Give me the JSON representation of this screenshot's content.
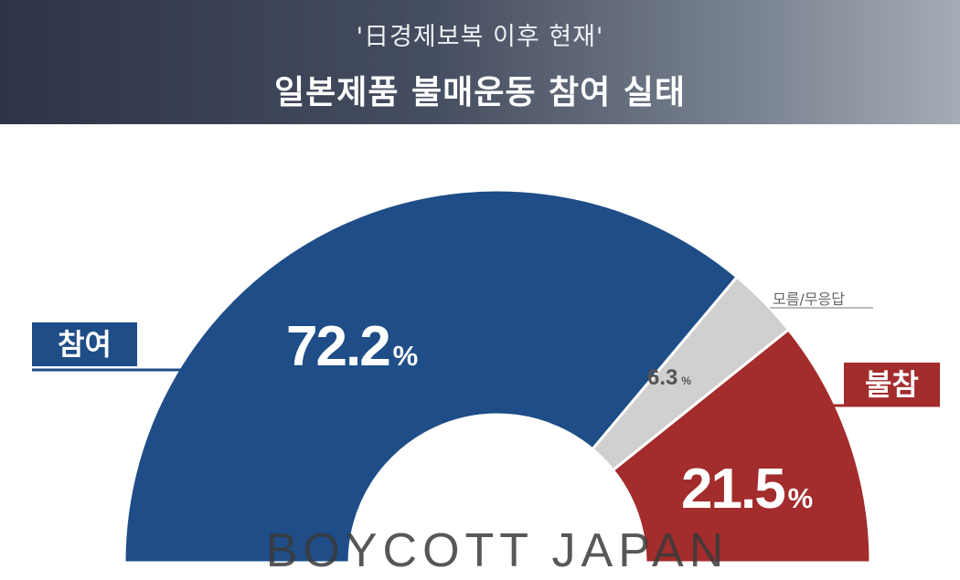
{
  "header": {
    "subtitle": "'日경제보복 이후 현재'",
    "title": "일본제품 불매운동 참여 실태"
  },
  "colors": {
    "participate": "#1e4d87",
    "unknown": "#d0d0d0",
    "not_participate": "#a32c2c"
  },
  "chart_data": {
    "type": "pie",
    "variant": "half-donut",
    "slices": [
      {
        "label": "참여",
        "value": 72.2,
        "display": "72.2",
        "unit": "%"
      },
      {
        "label": "모름/무응답",
        "value": 6.3,
        "display": "6.3",
        "unit": "%"
      },
      {
        "label": "불참",
        "value": 21.5,
        "display": "21.5",
        "unit": "%"
      }
    ]
  },
  "watermark": "BOYCOTT JAPAN"
}
